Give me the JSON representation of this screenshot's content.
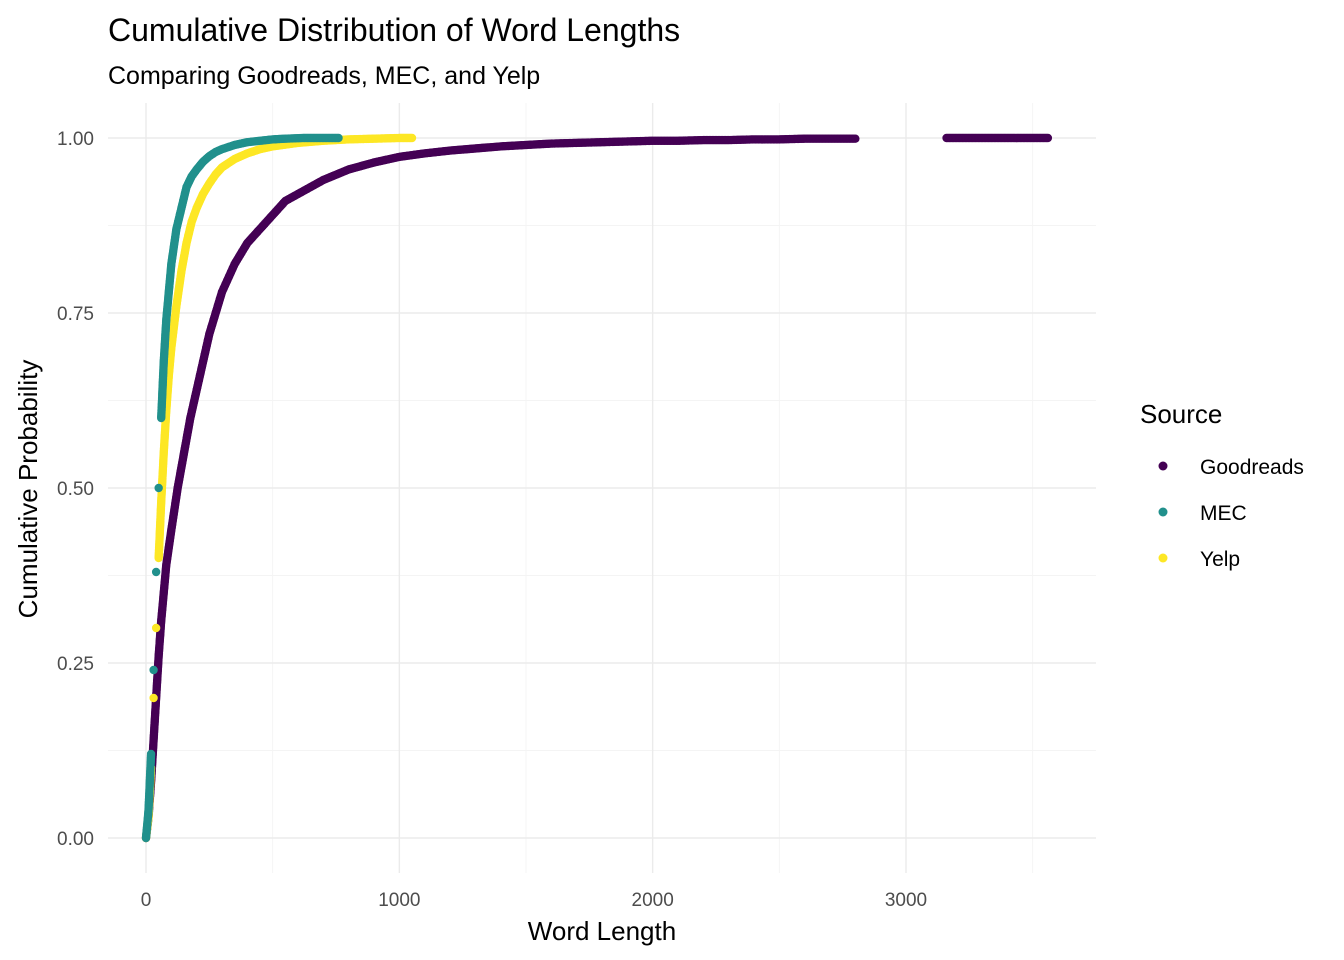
{
  "chart_data": {
    "type": "scatter",
    "title": "Cumulative Distribution of Word Lengths",
    "subtitle": "Comparing Goodreads, MEC, and Yelp",
    "xlabel": "Word Length",
    "ylabel": "Cumulative Probability",
    "xlim": [
      -150,
      3750
    ],
    "ylim": [
      -0.05,
      1.05
    ],
    "x_ticks": [
      0,
      1000,
      2000,
      3000
    ],
    "x_tick_labels": [
      "0",
      "1000",
      "2000",
      "3000"
    ],
    "y_ticks": [
      0,
      0.25,
      0.5,
      0.75,
      1.0
    ],
    "y_tick_labels": [
      "0.00",
      "0.25",
      "0.50",
      "0.75",
      "1.00"
    ],
    "grid": true,
    "legend": {
      "title": "Source",
      "position": "right"
    },
    "series": [
      {
        "name": "Goodreads",
        "color": "#440154",
        "points": [
          [
            0,
            0.0
          ],
          [
            10,
            0.03
          ],
          [
            20,
            0.08
          ],
          [
            30,
            0.14
          ],
          [
            40,
            0.2
          ],
          [
            50,
            0.26
          ],
          [
            60,
            0.31
          ],
          [
            70,
            0.35
          ],
          [
            80,
            0.39
          ],
          [
            100,
            0.44
          ],
          [
            125,
            0.5
          ],
          [
            150,
            0.55
          ],
          [
            175,
            0.6
          ],
          [
            200,
            0.64
          ],
          [
            225,
            0.68
          ],
          [
            250,
            0.72
          ],
          [
            275,
            0.75
          ],
          [
            300,
            0.78
          ],
          [
            350,
            0.82
          ],
          [
            400,
            0.85
          ],
          [
            450,
            0.87
          ],
          [
            500,
            0.89
          ],
          [
            550,
            0.91
          ],
          [
            600,
            0.92
          ],
          [
            700,
            0.94
          ],
          [
            800,
            0.955
          ],
          [
            900,
            0.965
          ],
          [
            1000,
            0.973
          ],
          [
            1100,
            0.978
          ],
          [
            1200,
            0.982
          ],
          [
            1300,
            0.985
          ],
          [
            1400,
            0.988
          ],
          [
            1500,
            0.99
          ],
          [
            1600,
            0.992
          ],
          [
            1700,
            0.993
          ],
          [
            1800,
            0.994
          ],
          [
            1900,
            0.995
          ],
          [
            2000,
            0.996
          ],
          [
            2100,
            0.996
          ],
          [
            2200,
            0.997
          ],
          [
            2300,
            0.997
          ],
          [
            2400,
            0.998
          ],
          [
            2500,
            0.998
          ],
          [
            2600,
            0.999
          ],
          [
            2700,
            0.999
          ],
          [
            2800,
            0.999
          ],
          [
            3160,
            1.0
          ],
          [
            3320,
            1.0
          ],
          [
            3400,
            1.0
          ],
          [
            3480,
            1.0
          ],
          [
            3560,
            1.0
          ]
        ]
      },
      {
        "name": "MEC",
        "color": "#21908C",
        "points": [
          [
            0,
            0.0
          ],
          [
            10,
            0.04
          ],
          [
            20,
            0.12
          ],
          [
            30,
            0.24
          ],
          [
            40,
            0.38
          ],
          [
            50,
            0.5
          ],
          [
            60,
            0.6
          ],
          [
            70,
            0.68
          ],
          [
            80,
            0.74
          ],
          [
            90,
            0.78
          ],
          [
            100,
            0.82
          ],
          [
            120,
            0.87
          ],
          [
            140,
            0.9
          ],
          [
            160,
            0.93
          ],
          [
            180,
            0.945
          ],
          [
            200,
            0.955
          ],
          [
            225,
            0.966
          ],
          [
            250,
            0.974
          ],
          [
            275,
            0.98
          ],
          [
            300,
            0.984
          ],
          [
            350,
            0.99
          ],
          [
            400,
            0.994
          ],
          [
            450,
            0.996
          ],
          [
            500,
            0.998
          ],
          [
            550,
            0.999
          ],
          [
            620,
            1.0
          ],
          [
            760,
            1.0
          ]
        ]
      },
      {
        "name": "Yelp",
        "color": "#FDE725",
        "points": [
          [
            0,
            0.0
          ],
          [
            10,
            0.03
          ],
          [
            20,
            0.1
          ],
          [
            30,
            0.2
          ],
          [
            40,
            0.3
          ],
          [
            50,
            0.4
          ],
          [
            60,
            0.48
          ],
          [
            70,
            0.55
          ],
          [
            80,
            0.61
          ],
          [
            90,
            0.66
          ],
          [
            100,
            0.7
          ],
          [
            120,
            0.76
          ],
          [
            140,
            0.81
          ],
          [
            160,
            0.85
          ],
          [
            180,
            0.88
          ],
          [
            200,
            0.9
          ],
          [
            225,
            0.92
          ],
          [
            250,
            0.935
          ],
          [
            275,
            0.948
          ],
          [
            300,
            0.958
          ],
          [
            350,
            0.97
          ],
          [
            400,
            0.978
          ],
          [
            450,
            0.984
          ],
          [
            500,
            0.988
          ],
          [
            600,
            0.993
          ],
          [
            700,
            0.996
          ],
          [
            800,
            0.998
          ],
          [
            900,
            0.999
          ],
          [
            1000,
            1.0
          ],
          [
            1050,
            1.0
          ]
        ]
      }
    ]
  }
}
